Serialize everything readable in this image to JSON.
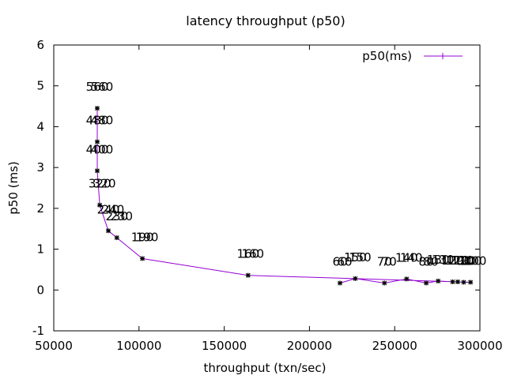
{
  "chart_data": {
    "type": "line",
    "title": "latency throughput (p50)",
    "xlabel": "throughput (txn/sec)",
    "ylabel": "p50 (ms)",
    "xlim": [
      50000,
      300000
    ],
    "ylim": [
      -1,
      6
    ],
    "x_ticks": [
      "50000",
      "100000",
      "150000",
      "200000",
      "250000",
      "300000"
    ],
    "x_tick_values": [
      50000,
      100000,
      150000,
      200000,
      250000,
      300000
    ],
    "y_ticks": [
      "-1",
      "0",
      "1",
      "2",
      "3",
      "4",
      "5",
      "6"
    ],
    "y_tick_values": [
      -1,
      0,
      1,
      2,
      3,
      4,
      5,
      6
    ],
    "grid": false,
    "legend_position": "top-right",
    "series": [
      {
        "name": "p50(ms)",
        "color": "#9400d3",
        "marker_color": "#000000",
        "points": [
          {
            "x": 217900,
            "y": 0.17,
            "label": "60"
          },
          {
            "x": 226900,
            "y": 0.28,
            "label": "150"
          },
          {
            "x": 244000,
            "y": 0.17,
            "label": "70"
          },
          {
            "x": 257000,
            "y": 0.27,
            "label": "140"
          },
          {
            "x": 268500,
            "y": 0.17,
            "label": "80"
          },
          {
            "x": 275500,
            "y": 0.22,
            "label": "130"
          },
          {
            "x": 284000,
            "y": 0.2,
            "label": "120"
          },
          {
            "x": 287000,
            "y": 0.2,
            "label": "110"
          },
          {
            "x": 290500,
            "y": 0.19,
            "label": "90"
          },
          {
            "x": 294500,
            "y": 0.19,
            "label": "100"
          },
          {
            "x": 164000,
            "y": 0.36,
            "label": "160"
          },
          {
            "x": 102000,
            "y": 0.77,
            "label": "190"
          },
          {
            "x": 87000,
            "y": 1.28,
            "label": "230"
          },
          {
            "x": 82000,
            "y": 1.45,
            "label": "240"
          },
          {
            "x": 77000,
            "y": 2.08,
            "label": "320"
          },
          {
            "x": 75500,
            "y": 2.92,
            "label": "400"
          },
          {
            "x": 75500,
            "y": 3.63,
            "label": "480"
          },
          {
            "x": 75500,
            "y": 4.45,
            "label": "560"
          }
        ]
      }
    ]
  }
}
